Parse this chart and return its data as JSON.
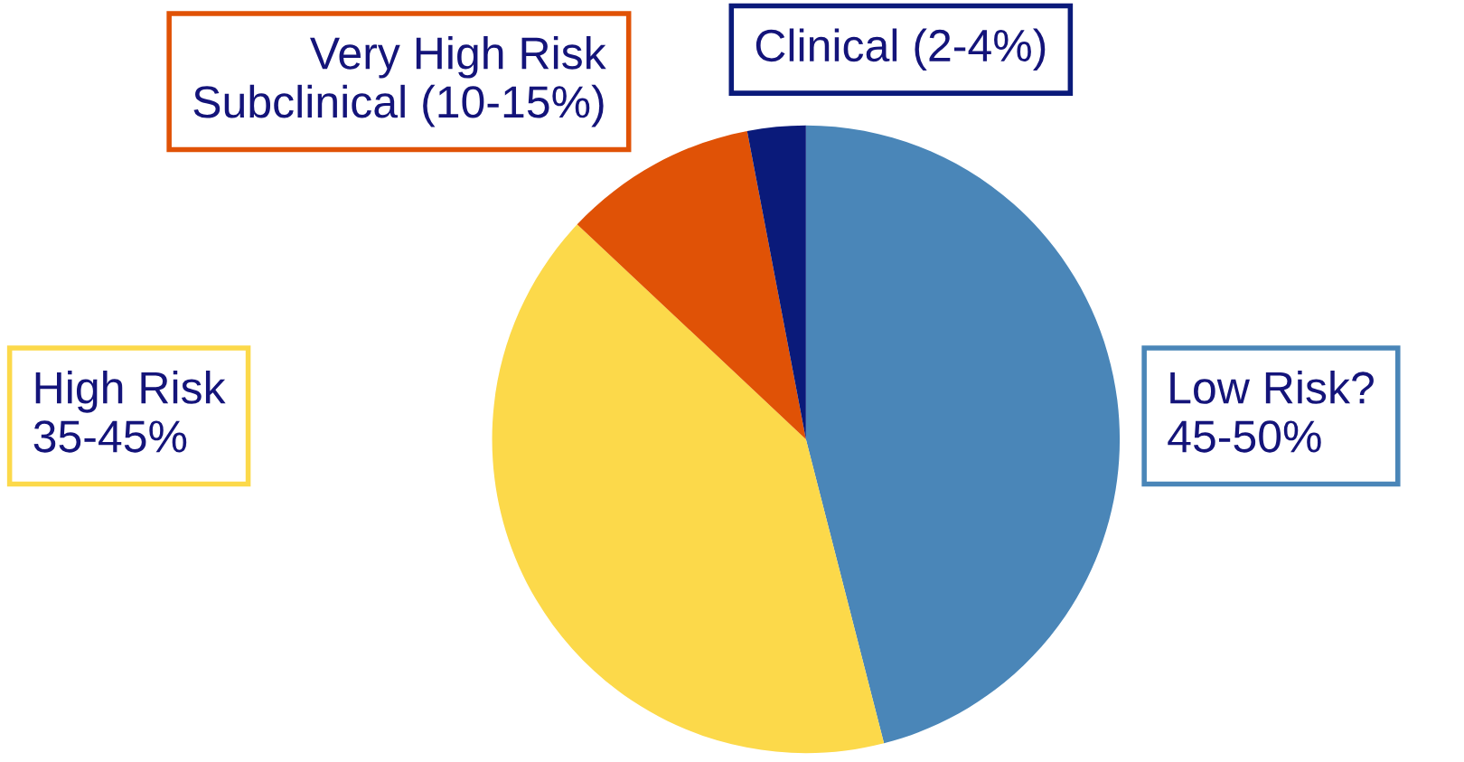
{
  "chart_data": {
    "type": "pie",
    "categories": [
      "Low Risk?\n45-50%",
      "High Risk\n35-45%",
      "Very High Risk\nSubclinical (10-15%)",
      "Clinical (2-4%)"
    ],
    "values": [
      46,
      41,
      10,
      3
    ],
    "colors": [
      "#4a86b8",
      "#fcd94a",
      "#e05206",
      "#0a1a7a"
    ]
  }
}
